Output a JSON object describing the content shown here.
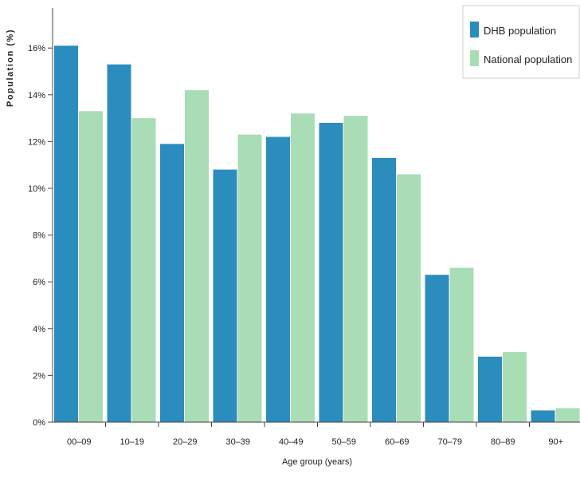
{
  "chart_data": {
    "type": "bar",
    "xlabel": "Age group (years)",
    "ylabel": "Population (%)",
    "ylim": [
      0,
      17.8
    ],
    "yticks": [
      0,
      2,
      4,
      6,
      8,
      10,
      12,
      14,
      16
    ],
    "ytick_labels": [
      "0%",
      "2%",
      "4%",
      "6%",
      "8%",
      "10%",
      "12%",
      "14%",
      "16%"
    ],
    "categories": [
      "00–09",
      "10–19",
      "20–29",
      "30–39",
      "40–49",
      "50–59",
      "60–69",
      "70–79",
      "80–89",
      "90+"
    ],
    "series": [
      {
        "name": "DHB population",
        "color": "#2b8cbe",
        "values": [
          16.1,
          15.3,
          11.9,
          10.8,
          12.2,
          12.8,
          11.3,
          6.3,
          2.8,
          0.5
        ]
      },
      {
        "name": "National population",
        "color": "#a8ddb5",
        "values": [
          13.3,
          13.0,
          14.2,
          12.3,
          13.2,
          13.1,
          10.6,
          6.6,
          3.0,
          0.6
        ]
      }
    ],
    "legend_position": "top-right",
    "grid": false
  }
}
